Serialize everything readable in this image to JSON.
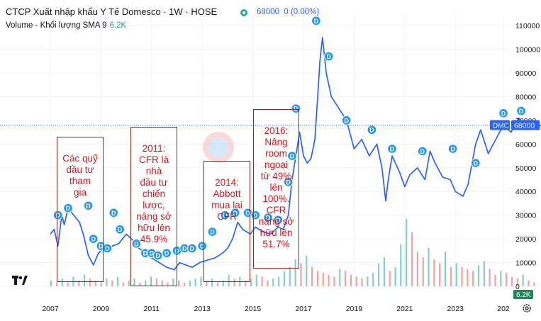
{
  "header": {
    "title": "CTCP Xuất nhập khẩu Y Tế Domesco · 1W · HOSE",
    "price": "68000",
    "change": "0 (0.00%)",
    "volume_label": "Volume - Khối lượng",
    "volume_sma": "SMA 9",
    "volume_value": "6.2K"
  },
  "colors": {
    "line": "#2962ff",
    "dividend": "#2196f3",
    "annotation_text": "#e0141d",
    "annotation_border": "#8a2a1a",
    "vol_up": "#26a69a",
    "vol_down": "#ef5350",
    "vol_label": "#22ab94"
  },
  "icons": {
    "logo": "tradingview-logo-icon",
    "settings": "gear-icon",
    "visibility": "eye-icon"
  },
  "chart_data": {
    "type": "line",
    "title": "CTCP Xuất nhập khẩu Y Tế Domesco · 1W · HOSE",
    "x_ticks": [
      "2007",
      "2009",
      "2011",
      "2013",
      "2015",
      "2017",
      "2019",
      "2021",
      "2023",
      "202"
    ],
    "y_ticks": [
      "110000",
      "100000",
      "90000",
      "80000",
      "70000",
      "60000",
      "50000",
      "40000",
      "30000",
      "20000",
      "10000",
      "0"
    ],
    "ylim": [
      0,
      112000
    ],
    "xlim": [
      2007,
      2026.9
    ],
    "last_price_label": "DMC",
    "last_price": "68000",
    "volume_label": "6.2K",
    "series": [
      {
        "x": [
          2007.0,
          2007.15,
          2007.3,
          2007.45,
          2007.55,
          2007.7,
          2007.85,
          2008.0,
          2008.15,
          2008.3,
          2008.5,
          2008.7,
          2008.9,
          2009.1,
          2009.25,
          2009.45,
          2009.7,
          2010.0,
          2010.3,
          2010.5,
          2010.8,
          2011.0,
          2011.3,
          2011.6,
          2011.9,
          2012.1,
          2012.35,
          2012.6,
          2012.9,
          2013.2,
          2013.5,
          2013.8,
          2014.0,
          2014.2,
          2014.4,
          2014.6,
          2014.9,
          2015.1,
          2015.4,
          2015.7,
          2016.0,
          2016.2,
          2016.4,
          2016.55,
          2016.7,
          2016.85,
          2017.0,
          2017.15,
          2017.3,
          2017.45,
          2017.55,
          2017.65,
          2017.75,
          2017.9,
          2018.1,
          2018.4,
          2018.7,
          2019.0,
          2019.3,
          2019.6,
          2019.9,
          2020.1,
          2020.25,
          2020.35,
          2020.5,
          2020.8,
          2021.0,
          2021.2,
          2021.5,
          2021.8,
          2022.0,
          2022.2,
          2022.5,
          2022.8,
          2023.0,
          2023.3,
          2023.5,
          2023.8,
          2024.0,
          2024.3,
          2024.6,
          2024.9,
          2025.2,
          2025.5,
          2025.8,
          2026.0,
          2026.2,
          2026.4
        ],
        "y": [
          22000,
          24000,
          17000,
          30000,
          26000,
          33000,
          31000,
          29000,
          27000,
          22000,
          13000,
          9000,
          14000,
          16000,
          15000,
          17000,
          18000,
          22000,
          19000,
          16000,
          14000,
          12000,
          10000,
          8000,
          7000,
          10000,
          9000,
          8000,
          10000,
          11000,
          12000,
          14000,
          16000,
          20000,
          27000,
          24000,
          22000,
          25000,
          23000,
          22000,
          25000,
          24000,
          30000,
          45000,
          55000,
          65000,
          55000,
          52000,
          54000,
          62000,
          78000,
          95000,
          105000,
          90000,
          80000,
          75000,
          70000,
          58000,
          62000,
          55000,
          60000,
          50000,
          36000,
          45000,
          55000,
          48000,
          42000,
          47000,
          50000,
          45000,
          57000,
          52000,
          46000,
          45000,
          40000,
          38000,
          43000,
          60000,
          66000,
          56000,
          62000,
          68000,
          65000,
          71000,
          66000,
          70000,
          67000,
          68000
        ]
      }
    ],
    "dividend_label": "D",
    "dividend_years": [
      2007.3,
      2007.7,
      2008.5,
      2008.7,
      2009.0,
      2009.25,
      2009.5,
      2009.75,
      2010.4,
      2010.75,
      2011.0,
      2011.25,
      2011.6,
      2012.0,
      2012.3,
      2012.6,
      2013.0,
      2013.4,
      2013.9,
      2014.3,
      2014.8,
      2015.1,
      2015.6,
      2016.0,
      2016.4,
      2016.55,
      2016.7,
      2017.5,
      2018.0,
      2018.7,
      2019.7,
      2020.5,
      2021.7,
      2022.9,
      2023.8,
      2024.9,
      2025.6
    ],
    "dividend_prices": [
      30000,
      33000,
      34000,
      20000,
      17000,
      16000,
      31000,
      24000,
      18000,
      14000,
      14000,
      13000,
      14000,
      15000,
      16000,
      16000,
      17000,
      23000,
      30000,
      31000,
      31000,
      30000,
      29000,
      28000,
      44000,
      55000,
      75000,
      112000,
      97000,
      70000,
      66000,
      58000,
      57000,
      58000,
      52000,
      73000,
      74000
    ],
    "volume": [
      3,
      2,
      4,
      2,
      5,
      3,
      6,
      4,
      3,
      2,
      4,
      3,
      5,
      2,
      3,
      4,
      2,
      3,
      5,
      4,
      3,
      2,
      4,
      3,
      2,
      3,
      4,
      5,
      3,
      4,
      2,
      3,
      6,
      4,
      5,
      3,
      4,
      6,
      5,
      3,
      4,
      5,
      8,
      10,
      14,
      12,
      16,
      10,
      8,
      7,
      6,
      5,
      9,
      8,
      6,
      5,
      4,
      5,
      7,
      12,
      15,
      8,
      10,
      22,
      35,
      28,
      18,
      15,
      20,
      14,
      12,
      18,
      10,
      12,
      10,
      9,
      8,
      11,
      13,
      9,
      6,
      8,
      7,
      5,
      4,
      6,
      3,
      2
    ],
    "annotations": [
      {
        "year": 2008.15,
        "text": [
          "Các quỹ",
          "đầu tư",
          "tham",
          "gia"
        ]
      },
      {
        "year": 2011.15,
        "text": [
          "2011:",
          "CFR là",
          "nhà",
          "đầu tư",
          "chiến",
          "lược,",
          "nâng sở",
          "hữu lên",
          "45.9%"
        ]
      },
      {
        "year": 2014.5,
        "text": [
          "2014:",
          "Abbott",
          "mua lại",
          "CFR"
        ]
      },
      {
        "year": 2016.8,
        "text": [
          "2016:",
          "Nâng",
          "room",
          "ngoại",
          "từ 49%",
          "lên",
          "100%.",
          "CFR",
          "nâng sở",
          "hữu lên",
          "51.7%"
        ]
      }
    ]
  }
}
